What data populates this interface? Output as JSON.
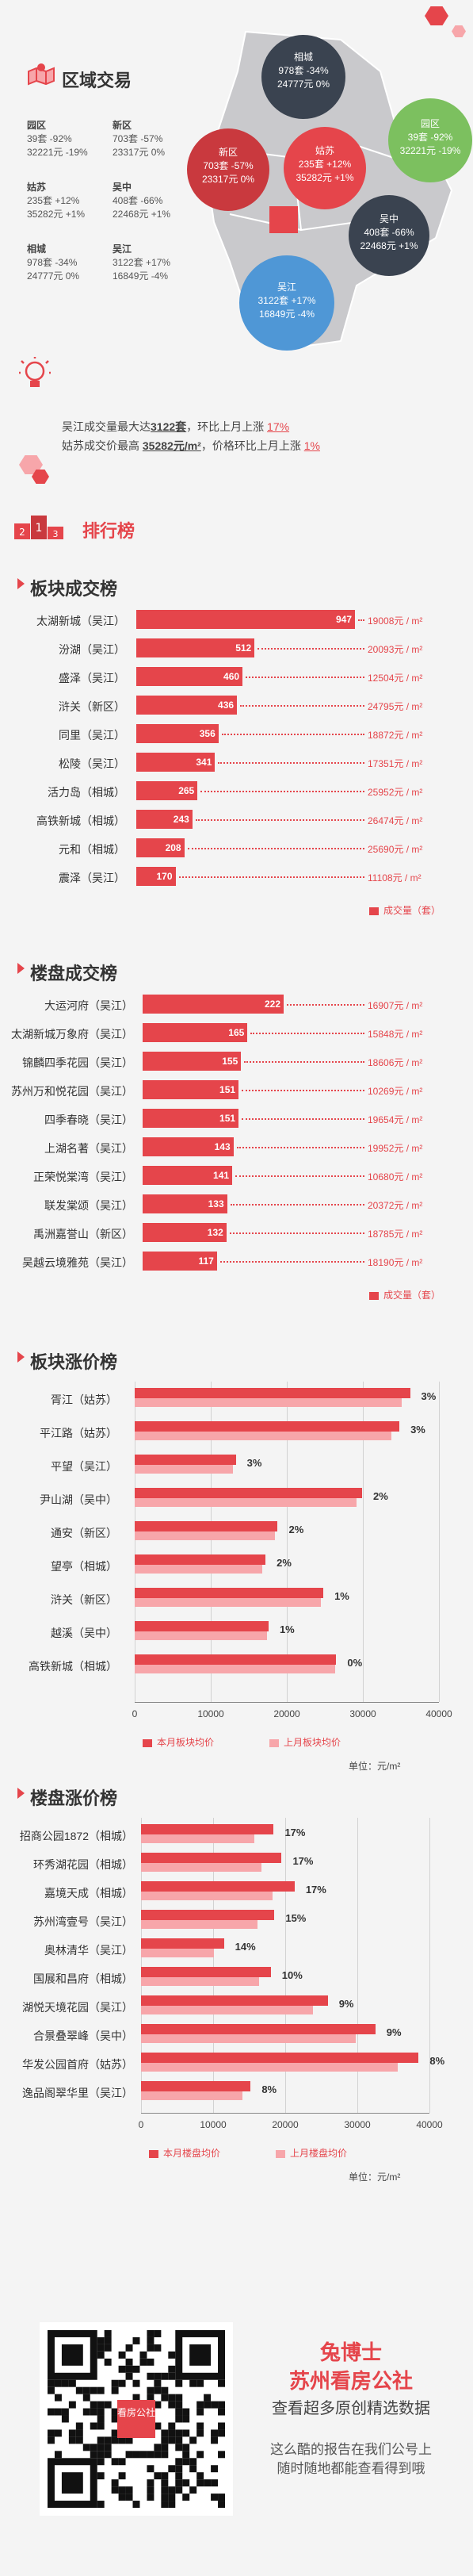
{
  "region": {
    "title": "区域交易",
    "stats": [
      {
        "name": "园区",
        "sales": "39套 -92%",
        "price": "32221元 -19%"
      },
      {
        "name": "新区",
        "sales": "703套 -57%",
        "price": "23317元 0%"
      },
      {
        "name": "姑苏",
        "sales": "235套 +12%",
        "price": "35282元 +1%"
      },
      {
        "name": "吴中",
        "sales": "408套 -66%",
        "price": "22468元 +1%"
      },
      {
        "name": "相城",
        "sales": "978套 -34%",
        "price": "24777元 0%"
      },
      {
        "name": "吴江",
        "sales": "3122套 +17%",
        "price": "16849元 -4%"
      }
    ],
    "map_bubbles": [
      {
        "name": "相城",
        "sales": "978套 -34%",
        "price": "24777元 0%",
        "color": "#3a4350"
      },
      {
        "name": "园区",
        "sales": "39套 -92%",
        "price": "32221元 -19%",
        "color": "#7cc05f"
      },
      {
        "name": "新区",
        "sales": "703套 -57%",
        "price": "23317元 0%",
        "color": "#c9393e"
      },
      {
        "name": "姑苏",
        "sales": "235套 +12%",
        "price": "35282元 +1%",
        "color": "#e5454b"
      },
      {
        "name": "吴中",
        "sales": "408套 -66%",
        "price": "22468元 +1%",
        "color": "#3a4350"
      },
      {
        "name": "吴江",
        "sales": "3122套 +17%",
        "price": "16849元 -4%",
        "color": "#4f97d6"
      }
    ]
  },
  "insight": {
    "line1_prefix": "吴江成交量最大达",
    "line1_value": "3122套",
    "line1_mid": "，环比上月上涨 ",
    "line1_pct": "17%",
    "line2_prefix": "姑苏成交价最高 ",
    "line2_value": "35282元/m²",
    "line2_mid": "，价格环比上月上涨 ",
    "line2_pct": "1%"
  },
  "ranking_title": "排行榜",
  "colors": {
    "accent": "#e5454b",
    "accent_light": "#f7a6aa",
    "dark": "#3a4350"
  },
  "chart_data": [
    {
      "type": "bar",
      "title": "板块成交榜",
      "categories": [
        "太湖新城（吴江）",
        "汾湖（吴江）",
        "盛泽（吴江）",
        "浒关（新区）",
        "同里（吴江）",
        "松陵（吴江）",
        "活力岛（相城）",
        "高铁新城（相城）",
        "元和（相城）",
        "震泽（吴江）"
      ],
      "values": [
        947,
        512,
        460,
        436,
        356,
        341,
        265,
        243,
        208,
        170
      ],
      "prices": [
        "19008元 / m²",
        "20093元 / m²",
        "12504元 / m²",
        "24795元 / m²",
        "18872元 / m²",
        "17351元 / m²",
        "25952元 / m²",
        "26474元 / m²",
        "25690元 / m²",
        "11108元 / m²"
      ],
      "legend": "成交量（套）",
      "xlim": [
        0,
        947
      ]
    },
    {
      "type": "bar",
      "title": "楼盘成交榜",
      "categories": [
        "大运河府（吴江）",
        "太湖新城万象府（吴江）",
        "锦麟四季花园（吴江）",
        "苏州万和悦花园（吴江）",
        "四季春晓（吴江）",
        "上湖名著（吴江）",
        "正荣悦棠湾（吴江）",
        "联发棠颂（吴江）",
        "禹洲嘉誉山（新区）",
        "吴越云境雅苑（吴江）"
      ],
      "values": [
        222,
        165,
        155,
        151,
        151,
        143,
        141,
        133,
        132,
        117
      ],
      "prices": [
        "16907元 / m²",
        "15848元 / m²",
        "18606元 / m²",
        "10269元 / m²",
        "19654元 / m²",
        "19952元 / m²",
        "10680元 / m²",
        "20372元 / m²",
        "18785元 / m²",
        "18190元 / m²"
      ],
      "legend": "成交量（套）",
      "xlim": [
        0,
        222
      ]
    },
    {
      "type": "bar",
      "title": "板块涨价榜",
      "categories": [
        "胥江（姑苏）",
        "平江路（姑苏）",
        "平望（吴江）",
        "尹山湖（吴中）",
        "通安（新区）",
        "望亭（相城）",
        "浒关（新区）",
        "越溪（吴中）",
        "高铁新城（相城）"
      ],
      "series": [
        {
          "name": "本月板块均价",
          "values": [
            36200,
            34800,
            13300,
            29900,
            18800,
            17200,
            24800,
            17600,
            26500
          ]
        },
        {
          "name": "上月板块均价",
          "values": [
            35100,
            33800,
            12900,
            29200,
            18400,
            16800,
            24500,
            17400,
            26400
          ]
        }
      ],
      "pct_labels": [
        "3%",
        "3%",
        "3%",
        "2%",
        "2%",
        "2%",
        "1%",
        "1%",
        "0%"
      ],
      "xlim": [
        0,
        40000
      ],
      "xticks": [
        "0",
        "10000",
        "20000",
        "30000",
        "40000"
      ],
      "unit": "单位：元/m²"
    },
    {
      "type": "bar",
      "title": "楼盘涨价榜",
      "categories": [
        "招商公园1872（相城）",
        "环秀湖花园（相城）",
        "嘉境天成（相城）",
        "苏州湾壹号（吴江）",
        "奥林清华（吴江）",
        "国展和昌府（相城）",
        "湖悦天境花园（吴江）",
        "合景叠翠峰（吴中）",
        "华发公园首府（姑苏）",
        "逸品阁翠华里（吴江）"
      ],
      "series": [
        {
          "name": "本月楼盘均价",
          "values": [
            18400,
            19500,
            21300,
            18500,
            11500,
            18000,
            25900,
            32500,
            38500,
            15200
          ]
        },
        {
          "name": "上月楼盘均价",
          "values": [
            15700,
            16700,
            18200,
            16100,
            10100,
            16400,
            23800,
            29800,
            35600,
            14100
          ]
        }
      ],
      "pct_labels": [
        "17%",
        "17%",
        "17%",
        "15%",
        "14%",
        "10%",
        "9%",
        "9%",
        "8%",
        "8%"
      ],
      "xlim": [
        0,
        40000
      ],
      "xticks": [
        "0",
        "10000",
        "20000",
        "30000",
        "40000"
      ],
      "unit": "单位：元/m²"
    }
  ],
  "footer": {
    "brand": "兔博士",
    "brand2": "苏州看房公社",
    "tagline": "查看超多原创精选数据",
    "desc1": "这么酷的报告在我们公号上",
    "desc2": "随时随地都能查看得到哦",
    "qr_center": "看房公社"
  }
}
